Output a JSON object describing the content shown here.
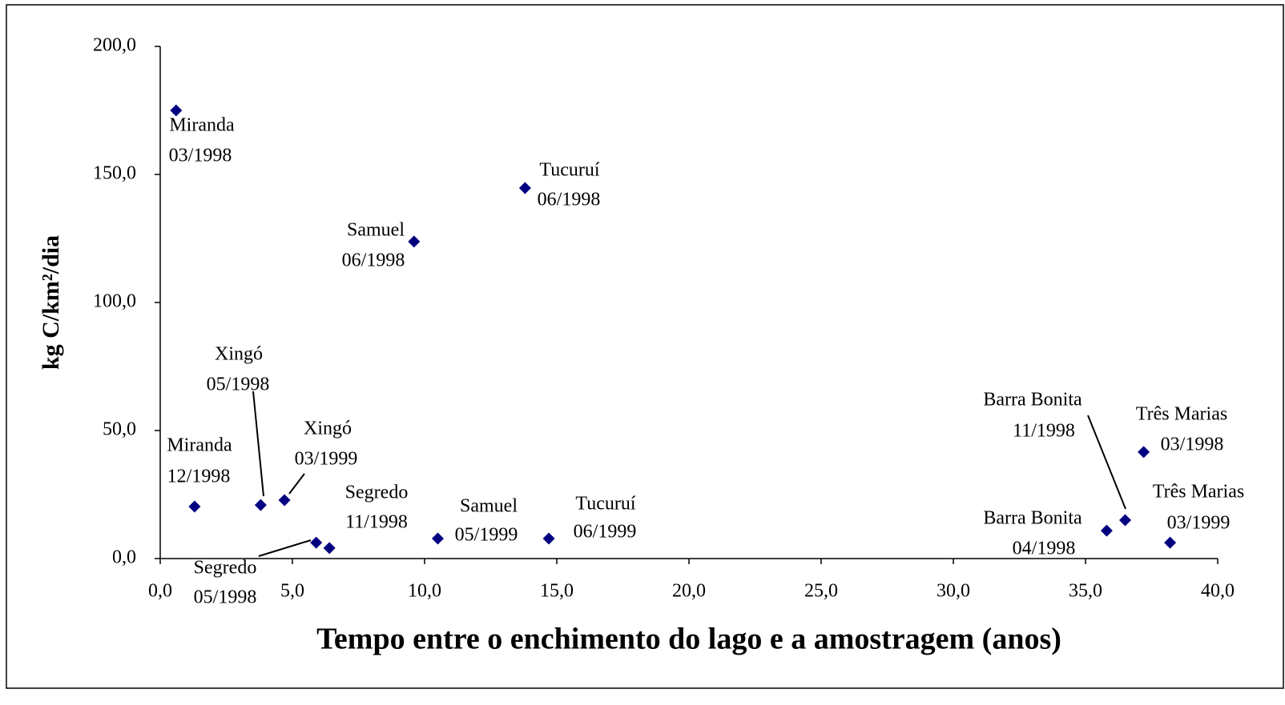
{
  "chart_data": {
    "type": "scatter",
    "x_label": "Tempo entre o enchimento do lago e a amostragem (anos)",
    "y_label": "kg C/km²/dia",
    "color": "#000080",
    "x": [
      0.6,
      1.3,
      3.8,
      4.7,
      5.9,
      6.4,
      9.6,
      10.5,
      13.8,
      14.7,
      35.8,
      36.5,
      37.2,
      38.2
    ],
    "values": [
      175,
      20.3,
      20.9,
      22.8,
      6.2,
      4.1,
      123.8,
      7.8,
      144.7,
      7.8,
      10.9,
      15,
      41.6,
      6.2
    ],
    "point_names": [
      "Miranda",
      "Miranda",
      "Xingó",
      "Xingó",
      "Segredo",
      "Segredo",
      "Samuel",
      "Samuel",
      "Tucuruí",
      "Tucuruí",
      "Barra Bonita",
      "Barra Bonita",
      "Três Marias",
      "Três Marias"
    ],
    "point_dates": [
      "03/1998",
      "12/1998",
      "05/1998",
      "03/1999",
      "05/1998",
      "11/1998",
      "06/1998",
      "05/1999",
      "06/1998",
      "06/1999",
      "04/1998",
      "11/1998",
      "03/1998",
      "03/1999"
    ],
    "xlim": [
      0,
      40
    ],
    "xticks": [
      {
        "value": 0,
        "label": "0,0"
      },
      {
        "value": 5,
        "label": "5,0"
      },
      {
        "value": 10,
        "label": "10,0"
      },
      {
        "value": 15,
        "label": "15,0"
      },
      {
        "value": 20,
        "label": "20,0"
      },
      {
        "value": 25,
        "label": "25,0"
      },
      {
        "value": 30,
        "label": "30,0"
      },
      {
        "value": 35,
        "label": "35,0"
      },
      {
        "value": 40,
        "label": "40,0"
      }
    ],
    "ylim": [
      0,
      200
    ],
    "yticks": [
      {
        "value": 0,
        "label": "0,0"
      },
      {
        "value": 50,
        "label": "50,0"
      },
      {
        "value": 100,
        "label": "100,0"
      },
      {
        "value": 150,
        "label": "150,0"
      },
      {
        "value": 200,
        "label": "200,0"
      }
    ],
    "grid": false
  }
}
